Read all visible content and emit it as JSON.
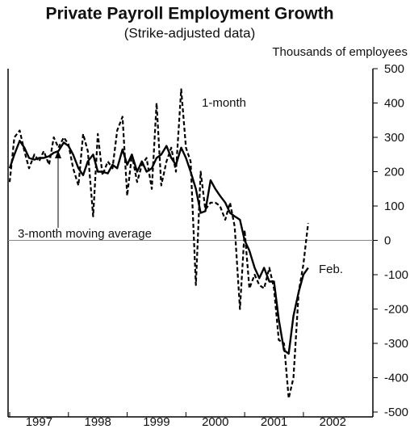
{
  "chart_data": {
    "type": "line",
    "title": "Private Payroll Employment Growth",
    "subtitle": "(Strike-adjusted data)",
    "y_axis_label": "Thousands of employees",
    "annotations": [
      "Feb."
    ],
    "x": [
      1997,
      1997.08,
      1997.17,
      1997.25,
      1997.33,
      1997.42,
      1997.5,
      1997.58,
      1997.67,
      1997.75,
      1997.83,
      1997.92,
      1998,
      1998.08,
      1998.17,
      1998.25,
      1998.33,
      1998.42,
      1998.5,
      1998.58,
      1998.67,
      1998.75,
      1998.83,
      1998.92,
      1999,
      1999.08,
      1999.17,
      1999.25,
      1999.33,
      1999.42,
      1999.5,
      1999.58,
      1999.67,
      1999.75,
      1999.83,
      1999.92,
      2000,
      2000.08,
      2000.17,
      2000.25,
      2000.33,
      2000.42,
      2000.5,
      2000.58,
      2000.67,
      2000.75,
      2000.83,
      2000.92,
      2001,
      2001.08,
      2001.17,
      2001.25,
      2001.33,
      2001.42,
      2001.5,
      2001.58,
      2001.67,
      2001.75,
      2001.83,
      2001.92,
      2002,
      2002.08
    ],
    "series": [
      {
        "name": "1-month",
        "color": "#000000",
        "dashed": true,
        "values": [
          170,
          300,
          320,
          260,
          210,
          250,
          230,
          260,
          220,
          300,
          270,
          300,
          280,
          210,
          160,
          310,
          260,
          70,
          310,
          190,
          230,
          210,
          320,
          360,
          130,
          250,
          170,
          220,
          240,
          150,
          400,
          160,
          230,
          270,
          200,
          440,
          270,
          230,
          -130,
          200,
          90,
          110,
          110,
          100,
          60,
          110,
          40,
          -200,
          30,
          -140,
          -100,
          -130,
          -140,
          -80,
          -140,
          -290,
          -300,
          -460,
          -400,
          -150,
          -70,
          50
        ]
      },
      {
        "name": "3-month moving average",
        "color": "#000000",
        "dashed": false,
        "values": [
          210,
          250,
          290,
          270,
          240,
          235,
          240,
          240,
          245,
          255,
          260,
          285,
          275,
          250,
          210,
          190,
          230,
          250,
          200,
          200,
          195,
          220,
          210,
          265,
          220,
          250,
          200,
          230,
          200,
          210,
          240,
          250,
          275,
          240,
          220,
          270,
          240,
          200,
          150,
          80,
          85,
          175,
          150,
          130,
          110,
          80,
          70,
          60,
          0,
          -30,
          -80,
          -110,
          -80,
          -120,
          -120,
          -230,
          -320,
          -330,
          -220,
          -150,
          -100,
          -80
        ]
      }
    ],
    "xlim": [
      1997,
      2003.1
    ],
    "xticks": [
      1997,
      1998,
      1999,
      2000,
      2001,
      2002
    ],
    "ylim": [
      -500,
      500
    ],
    "yticks": [
      -500,
      -400,
      -300,
      -200,
      -100,
      0,
      100,
      200,
      300,
      400,
      500
    ],
    "zero_line": true
  }
}
